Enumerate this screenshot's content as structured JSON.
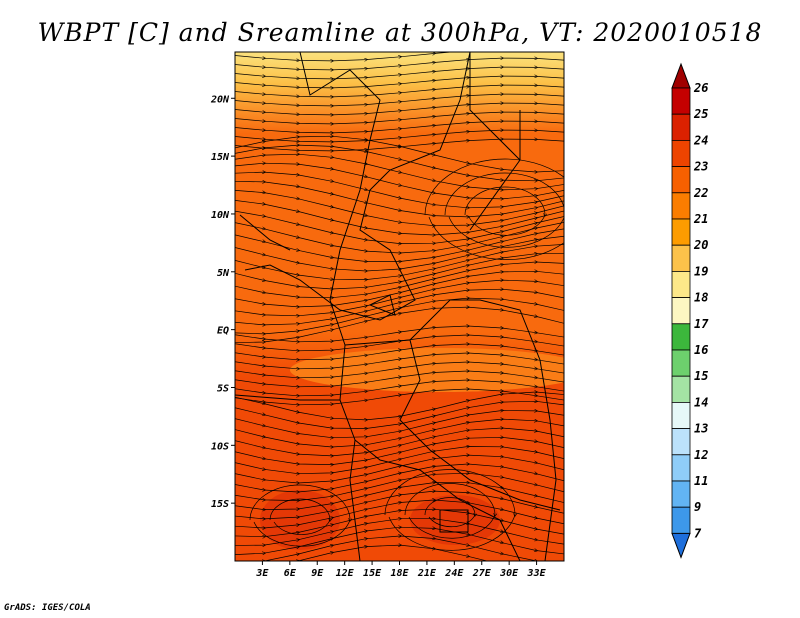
{
  "title": "WBPT [C] and Sreamline at 300hPa, VT: 2020010518",
  "credit": "GrADS: IGES/COLA",
  "map": {
    "lat_range": [
      -20,
      24
    ],
    "lon_range": [
      0,
      36
    ],
    "lat_ticks": [
      {
        "value": 20,
        "label": "20N"
      },
      {
        "value": 15,
        "label": "15N"
      },
      {
        "value": 10,
        "label": "10N"
      },
      {
        "value": 5,
        "label": "5N"
      },
      {
        "value": 0,
        "label": "EQ"
      },
      {
        "value": -5,
        "label": "5S"
      },
      {
        "value": -10,
        "label": "10S"
      },
      {
        "value": -15,
        "label": "15S"
      }
    ],
    "lon_ticks": [
      {
        "value": 3,
        "label": "3E"
      },
      {
        "value": 6,
        "label": "6E"
      },
      {
        "value": 9,
        "label": "9E"
      },
      {
        "value": 12,
        "label": "12E"
      },
      {
        "value": 15,
        "label": "15E"
      },
      {
        "value": 18,
        "label": "18E"
      },
      {
        "value": 21,
        "label": "21E"
      },
      {
        "value": 24,
        "label": "24E"
      },
      {
        "value": 27,
        "label": "27E"
      },
      {
        "value": 30,
        "label": "30E"
      },
      {
        "value": 33,
        "label": "33E"
      }
    ]
  },
  "colorbar": {
    "levels": [
      "26",
      "25",
      "24",
      "23",
      "22",
      "21",
      "20",
      "19",
      "18",
      "17",
      "16",
      "15",
      "14",
      "13",
      "12",
      "11",
      "9",
      "7"
    ],
    "colors": {
      "top_arrow": "#a00000",
      "bins": [
        "#c40000",
        "#db2100",
        "#ed4400",
        "#f76000",
        "#fb7d00",
        "#fd9c00",
        "#fcc24a",
        "#fde889",
        "#fdf7c2",
        "#3cb73c",
        "#6dd06d",
        "#a4e3a4",
        "#e6f8f8",
        "#bce2fb",
        "#8fcdf8",
        "#62b4f3",
        "#3d98ea"
      ],
      "bottom_arrow": "#1e6fdc"
    }
  },
  "field_colors": {
    "north_pale": "#fbe27e",
    "north_gold": "#fcc148",
    "mid_orange": "#f86a0e",
    "band_light": "#fa7d16",
    "south_red": "#f04a06",
    "deep_red": "#e43806"
  }
}
